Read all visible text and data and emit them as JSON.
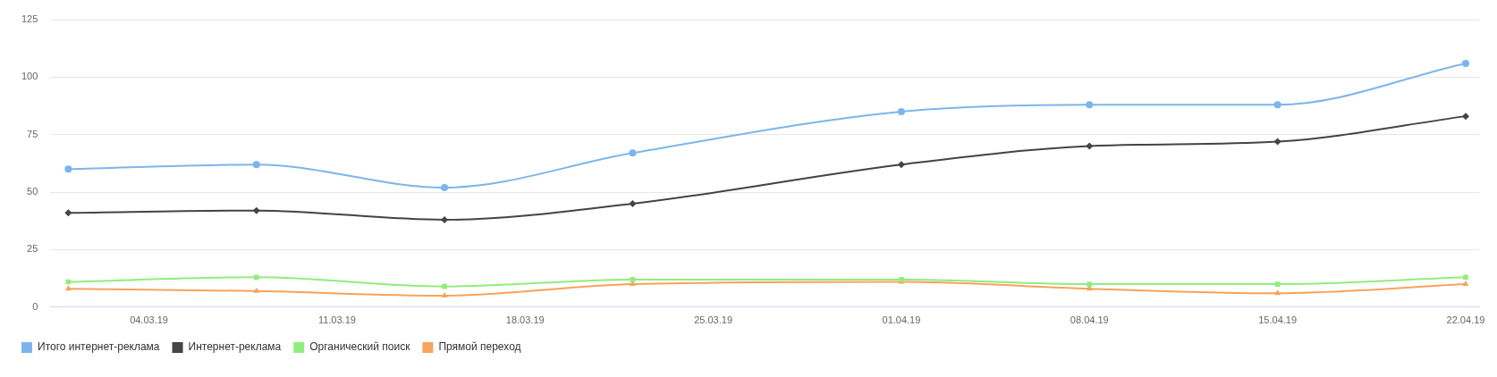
{
  "chart_data": {
    "type": "line",
    "x": [
      "--03-01",
      "--03-08",
      "--03-15",
      "--03-22",
      "--04-01",
      "--04-08",
      "--04-15",
      "--04-22"
    ],
    "xlim": [
      "--02-28T08:00",
      "--04-22T12:00"
    ],
    "xticks": [
      {
        "value": "--03-04",
        "label": "04.03.19"
      },
      {
        "value": "--03-11",
        "label": "11.03.19"
      },
      {
        "value": "--03-18",
        "label": "18.03.19"
      },
      {
        "value": "--03-25",
        "label": "25.03.19"
      },
      {
        "value": "--04-01",
        "label": "01.04.19"
      },
      {
        "value": "--04-08",
        "label": "08.04.19"
      },
      {
        "value": "--04-15",
        "label": "15.04.19"
      },
      {
        "value": "--04-22",
        "label": "22.04.19"
      }
    ],
    "ylim": [
      0,
      125
    ],
    "yticks": [
      0,
      25,
      50,
      75,
      100,
      125
    ],
    "grid": "y",
    "legend": "bottom left",
    "series": [
      {
        "name": "Итого интернет-реклама",
        "color": "#7cb5ec",
        "marker": "circle",
        "values": [
          60,
          62,
          52,
          67,
          85,
          88,
          88,
          106
        ]
      },
      {
        "name": "Интернет-реклама",
        "color": "#434348",
        "marker": "diamond",
        "values": [
          41,
          42,
          38,
          45,
          62,
          70,
          72,
          83
        ]
      },
      {
        "name": "Органический поиск",
        "color": "#90ed7d",
        "marker": "square",
        "values": [
          11,
          13,
          9,
          12,
          12,
          10,
          10,
          13
        ]
      },
      {
        "name": "Прямой переход",
        "color": "#f7a35c",
        "marker": "triangle",
        "values": [
          8,
          7,
          5,
          10,
          11,
          8,
          6,
          10
        ]
      }
    ]
  }
}
